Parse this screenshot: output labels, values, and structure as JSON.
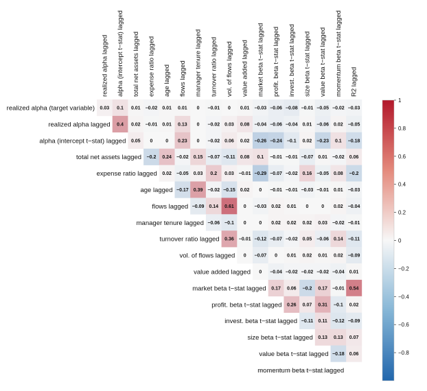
{
  "chart_data": {
    "type": "heatmap",
    "title": "",
    "layout": "upper-triangular",
    "labels": [
      "realized alpha lagged",
      "alpha (intercept t−stat) lagged",
      "total net assets lagged",
      "expense ratio lagged",
      "age lagged",
      "flows lagged",
      "manager tenure lagged",
      "turnover ratio lagged",
      "vol. of flows lagged",
      "value added lagged",
      "market beta t−stat lagged",
      "profit. beta t−stat lagged",
      "invest. beta t−stat lagged",
      "size beta t−stat lagged",
      "value beta t−stat lagged",
      "momentum beta t−stat lagged",
      "R2 lagged"
    ],
    "row_labels": [
      "realized alpha (target variable)",
      "realized alpha lagged",
      "alpha (intercept t−stat) lagged",
      "total net assets lagged",
      "expense ratio lagged",
      "age lagged",
      "flows lagged",
      "manager tenure lagged",
      "turnover ratio lagged",
      "vol. of flows lagged",
      "value added lagged",
      "market beta t−stat lagged",
      "profit. beta t−stat lagged",
      "invest. beta t−stat lagged",
      "size beta t−stat lagged",
      "value beta t−stat lagged",
      "momentum beta t−stat lagged"
    ],
    "col_labels": [
      "realized alpha lagged",
      "alpha (intercept t−stat) lagged",
      "total net assets lagged",
      "expense ratio lagged",
      "age lagged",
      "flows lagged",
      "manager tenure lagged",
      "turnover ratio lagged",
      "vol. of flows lagged",
      "value added lagged",
      "market beta t−stat lagged",
      "profit. beta t−stat lagged",
      "invest. beta t−stat lagged",
      "size beta t−stat lagged",
      "value beta t−stat lagged",
      "momentum beta t−stat lagged",
      "R2 lagged"
    ],
    "rows": [
      {
        "start": 0,
        "values": [
          0.03,
          0.1,
          0.01,
          -0.02,
          0.01,
          0.01,
          0,
          -0.01,
          0,
          0.01,
          -0.03,
          -0.06,
          -0.08,
          -0.01,
          -0.05,
          -0.02,
          -0.03
        ]
      },
      {
        "start": 1,
        "values": [
          0.4,
          0.02,
          -0.01,
          0.01,
          0.13,
          0,
          -0.02,
          0.03,
          0.08,
          -0.04,
          -0.06,
          -0.04,
          0.01,
          -0.06,
          0.02,
          -0.05
        ]
      },
      {
        "start": 2,
        "values": [
          0.05,
          0,
          0,
          0.23,
          0,
          -0.02,
          0.06,
          0.02,
          -0.26,
          -0.24,
          -0.1,
          0.02,
          -0.23,
          0.1,
          -0.18
        ]
      },
      {
        "start": 3,
        "values": [
          -0.2,
          0.24,
          -0.02,
          0.15,
          -0.07,
          -0.11,
          0.08,
          0.1,
          -0.01,
          -0.01,
          -0.07,
          0.01,
          -0.02,
          0.06
        ]
      },
      {
        "start": 4,
        "values": [
          0.02,
          -0.05,
          0.03,
          0.2,
          0.03,
          -0.01,
          -0.29,
          -0.07,
          -0.02,
          0.16,
          -0.05,
          0.08,
          -0.2
        ]
      },
      {
        "start": 5,
        "values": [
          -0.17,
          0.39,
          -0.02,
          -0.15,
          0.02,
          0,
          -0.01,
          -0.01,
          -0.03,
          -0.01,
          0.01,
          -0.03
        ]
      },
      {
        "start": 6,
        "values": [
          -0.09,
          0.14,
          0.61,
          0,
          -0.03,
          0.02,
          0.01,
          0,
          0,
          0.02,
          -0.04
        ]
      },
      {
        "start": 7,
        "values": [
          -0.06,
          -0.1,
          0,
          0,
          0.02,
          0.02,
          0.02,
          0.03,
          -0.02,
          -0.01
        ]
      },
      {
        "start": 8,
        "values": [
          0.36,
          -0.01,
          -0.12,
          -0.07,
          -0.02,
          0.05,
          -0.06,
          0.14,
          -0.11
        ]
      },
      {
        "start": 9,
        "values": [
          0,
          -0.07,
          0,
          0.01,
          0.02,
          0.01,
          0.02,
          -0.09
        ]
      },
      {
        "start": 10,
        "values": [
          0,
          -0.04,
          -0.02,
          -0.02,
          -0.02,
          -0.04,
          0.01
        ]
      },
      {
        "start": 11,
        "values": [
          0.17,
          0.06,
          -0.2,
          0.17,
          -0.01,
          0.54
        ]
      },
      {
        "start": 12,
        "values": [
          0.26,
          0.07,
          0.31,
          -0.1,
          0.02
        ]
      },
      {
        "start": 13,
        "values": [
          -0.11,
          0.11,
          -0.12,
          -0.09
        ]
      },
      {
        "start": 14,
        "values": [
          0.13,
          0.13,
          0.07
        ]
      },
      {
        "start": 15,
        "values": [
          -0.18,
          0.06
        ]
      },
      {
        "start": 16,
        "values": [
          null
        ]
      }
    ],
    "colorbar": {
      "range": [
        -1,
        1
      ],
      "ticks": [
        1,
        0.8,
        0.6,
        0.4,
        0.2,
        0,
        -0.2,
        -0.4,
        -0.6,
        -0.8
      ],
      "tick_labels": [
        "1",
        "0.8",
        "0.6",
        "0.4",
        "0.2",
        "0",
        "−0.2",
        "−0.4",
        "−0.6",
        "−0.8"
      ],
      "colors": {
        "negative": "#2166ac",
        "mid": "#f7f7f7",
        "positive": "#b2182b"
      }
    },
    "grid": false,
    "legend": "right",
    "watermark_text": "momentum beta t−stat lagged"
  }
}
